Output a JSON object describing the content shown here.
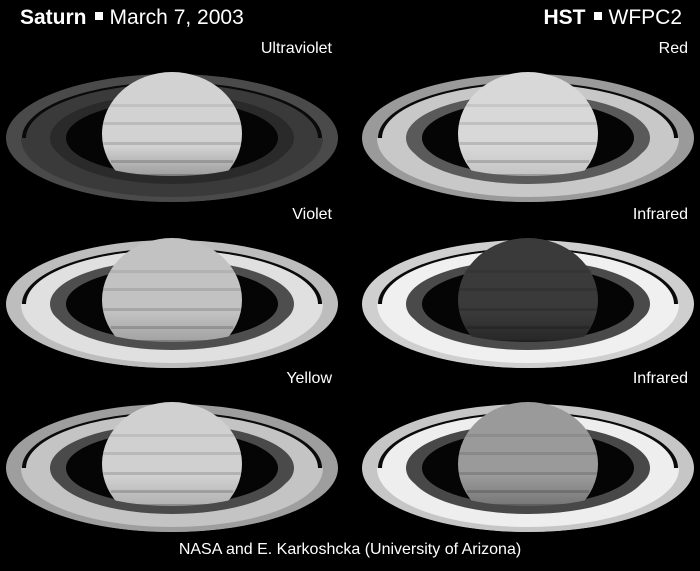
{
  "header": {
    "left_bold": "Saturn",
    "left_date": "March 7, 2003",
    "right_bold": "HST",
    "right_instrument": "WFPC2"
  },
  "panels": [
    {
      "label": "Ultraviolet",
      "planet": "#d2d2d2",
      "planet_south": "#7a7a7a",
      "ring_outer": "#4a4a4a",
      "ring_b": "#3a3a3a",
      "ring_inner": "#2a2a2a"
    },
    {
      "label": "Red",
      "planet": "#d8d8d8",
      "planet_south": "#b6b6b6",
      "ring_outer": "#9a9a9a",
      "ring_b": "#c8c8c8",
      "ring_inner": "#5a5a5a"
    },
    {
      "label": "Violet",
      "planet": "#c2c2c2",
      "planet_south": "#8c8c8c",
      "ring_outer": "#bdbdbd",
      "ring_b": "#e0e0e0",
      "ring_inner": "#4e4e4e"
    },
    {
      "label": "Infrared",
      "planet": "#3a3a3a",
      "planet_south": "#1a1a1a",
      "ring_outer": "#cfcfcf",
      "ring_b": "#f0f0f0",
      "ring_inner": "#4a4a4a"
    },
    {
      "label": "Yellow",
      "planet": "#d0d0d0",
      "planet_south": "#9c9c9c",
      "ring_outer": "#9e9e9e",
      "ring_b": "#c4c4c4",
      "ring_inner": "#4a4a4a"
    },
    {
      "label": "Infrared",
      "planet": "#9a9a9a",
      "planet_south": "#5e5e5e",
      "ring_outer": "#c6c6c6",
      "ring_b": "#eeeeee",
      "ring_inner": "#484848"
    }
  ],
  "credit": "NASA and E. Karkoshcka (University of Arizona)"
}
